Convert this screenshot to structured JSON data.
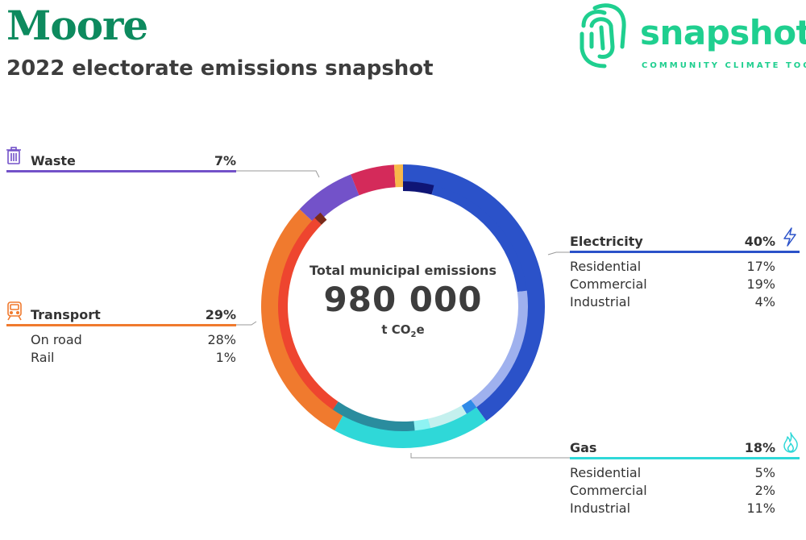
{
  "header": {
    "title": "Moore",
    "subtitle": "2022 electorate emissions snapshot"
  },
  "logo": {
    "wordmark": "snapshot",
    "tagline": "COMMUNITY CLIMATE TOOL",
    "color": "#1fcf8f"
  },
  "center": {
    "label": "Total municipal emissions",
    "value": "980 000",
    "unit_prefix": "t CO",
    "unit_sub": "2",
    "unit_suffix": "e"
  },
  "sectors": {
    "electricity": {
      "name": "Electricity",
      "pct": "40%",
      "color": "#2b52c9",
      "icon": "lightning-icon",
      "subs": [
        {
          "name": "Residential",
          "pct": "17%"
        },
        {
          "name": "Commercial",
          "pct": "19%"
        },
        {
          "name": "Industrial",
          "pct": "4%"
        }
      ]
    },
    "gas": {
      "name": "Gas",
      "pct": "18%",
      "color": "#2fd8d8",
      "icon": "flame-icon",
      "subs": [
        {
          "name": "Residential",
          "pct": "5%"
        },
        {
          "name": "Commercial",
          "pct": "2%"
        },
        {
          "name": "Industrial",
          "pct": "11%"
        }
      ]
    },
    "transport": {
      "name": "Transport",
      "pct": "29%",
      "color": "#f07a2e",
      "icon": "train-icon",
      "subs": [
        {
          "name": "On road",
          "pct": "28%"
        },
        {
          "name": "Rail",
          "pct": "1%"
        }
      ]
    },
    "waste": {
      "name": "Waste",
      "pct": "7%",
      "color": "#7352c9",
      "icon": "trash-bin-icon",
      "subs": []
    }
  },
  "chart_data": {
    "type": "pie",
    "title": "Total municipal emissions",
    "total": 980000,
    "unit": "t CO2e",
    "start_angle_deg": 0,
    "direction": "clockwise",
    "outer_ring": [
      {
        "name": "Electricity",
        "value": 40,
        "color": "#2b52c9"
      },
      {
        "name": "Gas",
        "value": 18,
        "color": "#2fd8d8"
      },
      {
        "name": "Transport",
        "value": 29,
        "color": "#f07a2e"
      },
      {
        "name": "Waste",
        "value": 7,
        "color": "#7352c9"
      },
      {
        "value": 5,
        "color": "#d42a5a"
      },
      {
        "value": 1,
        "color": "#f7b84a"
      }
    ],
    "inner_ring": [
      {
        "parent": "Electricity",
        "name": "Industrial",
        "value": 4,
        "color": "#0f1575"
      },
      {
        "parent": "Electricity",
        "name": "Commercial",
        "value": 19,
        "color": "#2b52c9"
      },
      {
        "parent": "Electricity",
        "name": "Residential",
        "value": 17,
        "color": "#9fb1ee"
      },
      {
        "value": 1.5,
        "color": "#2f8ae8"
      },
      {
        "parent": "Gas",
        "name": "Residential",
        "value": 5,
        "color": "#c4f0ee"
      },
      {
        "parent": "Gas",
        "name": "Commercial",
        "value": 2,
        "color": "#8ef3f3"
      },
      {
        "parent": "Gas",
        "name": "Industrial",
        "value": 11,
        "color": "#2a8c9e"
      },
      {
        "parent": "Transport",
        "name": "On road",
        "value": 28,
        "color": "#ee452f"
      },
      {
        "parent": "Transport",
        "name": "Rail",
        "value": 1,
        "color": "#7a2a1a"
      }
    ]
  }
}
